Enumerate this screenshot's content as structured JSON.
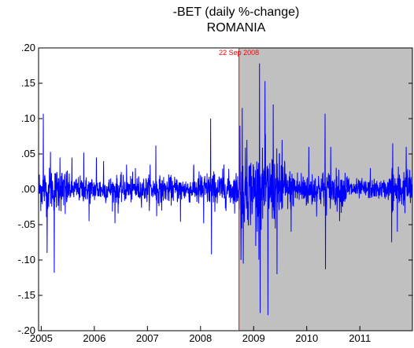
{
  "chart_data": {
    "type": "line",
    "title": "-BET (daily %-change)",
    "subtitle": "ROMANIA",
    "xlabel": "",
    "ylabel": "",
    "ylim": [
      -0.2,
      0.2
    ],
    "xlim_years": [
      2004.95,
      2011.99
    ],
    "y_ticks": [
      ".20",
      ".15",
      ".10",
      ".05",
      ".00",
      "-.05",
      "-.10",
      "-.15",
      "-.20"
    ],
    "y_tick_values": [
      0.2,
      0.15,
      0.1,
      0.05,
      0.0,
      -0.05,
      -0.1,
      -0.15,
      -0.2
    ],
    "x_ticks": [
      "2005",
      "2006",
      "2007",
      "2008",
      "2009",
      "2010",
      "2011"
    ],
    "x_tick_years": [
      2005,
      2006,
      2007,
      2008,
      2009,
      2010,
      2011
    ],
    "annotation": {
      "label": "22 Sep 2008",
      "date": "2008-09-22",
      "color": "#ff0000"
    },
    "shaded_region": {
      "from": "2008-09-22",
      "to": "2011-12-31",
      "color": "#c0c0c0"
    },
    "series": [
      {
        "color": "#0000ff",
        "points": [
          [
            "2005-01-15",
            0.107
          ],
          [
            "2005-02-10",
            -0.09
          ],
          [
            "2005-03-05",
            0.053
          ],
          [
            "2005-04-01",
            -0.118
          ],
          [
            "2005-05-10",
            0.045
          ],
          [
            "2005-06-15",
            -0.035
          ],
          [
            "2005-08-01",
            0.045
          ],
          [
            "2005-10-20",
            0.052
          ],
          [
            "2005-11-25",
            -0.045
          ],
          [
            "2006-01-15",
            0.045
          ],
          [
            "2006-03-05",
            0.04
          ],
          [
            "2006-05-23",
            -0.048
          ],
          [
            "2006-06-14",
            -0.034
          ],
          [
            "2006-08-10",
            0.035
          ],
          [
            "2006-10-10",
            0.03
          ],
          [
            "2007-01-20",
            0.035
          ],
          [
            "2007-02-28",
            0.062
          ],
          [
            "2007-03-06",
            -0.038
          ],
          [
            "2007-04-10",
            -0.03
          ],
          [
            "2007-08-16",
            -0.046
          ],
          [
            "2007-11-15",
            0.035
          ],
          [
            "2008-01-22",
            -0.048
          ],
          [
            "2008-03-10",
            0.1
          ],
          [
            "2008-03-17",
            -0.092
          ],
          [
            "2008-06-10",
            0.035
          ],
          [
            "2008-09-29",
            0.09
          ],
          [
            "2008-10-06",
            -0.1
          ],
          [
            "2008-10-15",
            0.115
          ],
          [
            "2008-10-22",
            -0.105
          ],
          [
            "2008-11-15",
            0.07
          ],
          [
            "2009-01-15",
            -0.08
          ],
          [
            "2009-02-10",
            0.178
          ],
          [
            "2009-02-15",
            -0.175
          ],
          [
            "2009-03-20",
            0.153
          ],
          [
            "2009-04-10",
            -0.178
          ],
          [
            "2009-05-15",
            0.12
          ],
          [
            "2009-06-10",
            -0.12
          ],
          [
            "2009-07-15",
            0.07
          ],
          [
            "2009-09-15",
            -0.06
          ],
          [
            "2010-01-15",
            0.06
          ],
          [
            "2010-05-07",
            0.107
          ],
          [
            "2010-05-10",
            -0.113
          ],
          [
            "2010-06-15",
            0.06
          ],
          [
            "2010-08-15",
            -0.045
          ],
          [
            "2011-03-15",
            0.03
          ],
          [
            "2011-08-08",
            -0.075
          ],
          [
            "2011-08-15",
            0.065
          ],
          [
            "2011-09-15",
            -0.06
          ],
          [
            "2011-11-15",
            0.06
          ]
        ]
      }
    ]
  }
}
